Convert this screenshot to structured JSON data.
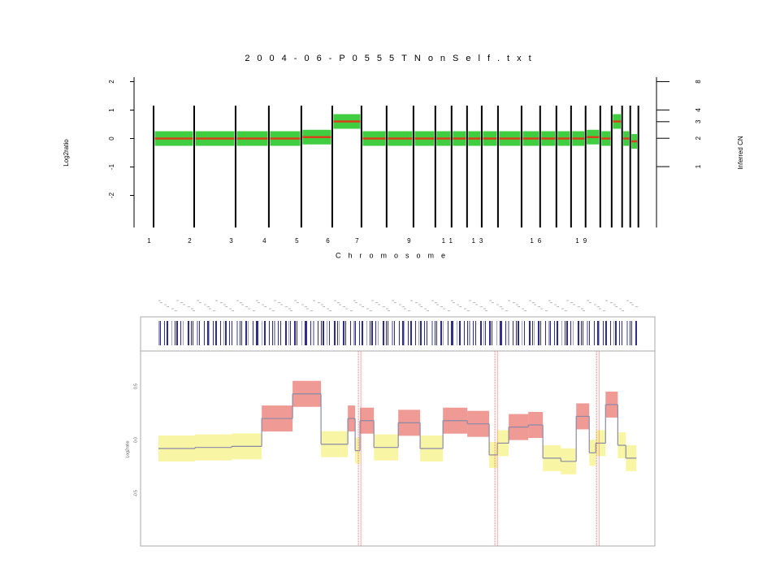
{
  "chart_data": [
    {
      "type": "segment",
      "title": "2004-06-P0555TNonSelf.txt",
      "xlabel": "Chromosome",
      "ylabel": "Log2ratio",
      "y2label": "Inferred CN",
      "xlim": [
        -125,
        3220
      ],
      "ylim": [
        -3.1,
        2.1
      ],
      "yticks": [
        2,
        1,
        0,
        -1,
        -2
      ],
      "y2lim": [
        0.23,
        8.57
      ],
      "y2log": 2,
      "y2ticks": [
        8,
        4,
        3,
        2,
        1
      ],
      "xticks": [
        {
          "value": 0,
          "label": "1"
        },
        {
          "value": 260,
          "label": "2"
        },
        {
          "value": 525,
          "label": "3"
        },
        {
          "value": 738,
          "label": "4"
        },
        {
          "value": 946,
          "label": "5"
        },
        {
          "value": 1144,
          "label": "6"
        },
        {
          "value": 1331,
          "label": "7"
        },
        {
          "value": 1664,
          "label": "9"
        },
        {
          "value": 1908,
          "label": "11"
        },
        {
          "value": 2101,
          "label": "13"
        },
        {
          "value": 2475,
          "label": "16"
        },
        {
          "value": 2766,
          "label": "19"
        }
      ],
      "boundaries": [
        0,
        260,
        525,
        738,
        946,
        1144,
        1331,
        1492,
        1664,
        1804,
        1908,
        2007,
        2101,
        2205,
        2356,
        2475,
        2579,
        2673,
        2766,
        2860,
        2933,
        3000,
        3052,
        3104
      ],
      "values": [
        0,
        0,
        0,
        0,
        0.05,
        0.6,
        0,
        0,
        0,
        0,
        0,
        0,
        0,
        0,
        0,
        0,
        0,
        0,
        0.05,
        0,
        0.6,
        0,
        -0.1
      ],
      "point_color": "#1fc41f",
      "segment_color": "#d8401c"
    },
    {
      "type": "step",
      "ylabel": "Log2ratio",
      "xlim": [
        -115,
        3200
      ],
      "ylim": [
        -0.99,
        0.83
      ],
      "yticks": [
        {
          "value": 0.5,
          "label": "0.5"
        },
        {
          "value": 0,
          "label": "0.0"
        },
        {
          "value": -0.5,
          "label": "-0.5"
        }
      ],
      "breaks": [
        0,
        236,
        472,
        666,
        865,
        1048,
        1221,
        1268,
        1299,
        1389,
        1546,
        1687,
        1834,
        1991,
        2132,
        2185,
        2258,
        2384,
        2478,
        2594,
        2693,
        2777,
        2819,
        2882,
        2961,
        3013,
        3081
      ],
      "values": [
        -0.08,
        -0.07,
        -0.06,
        0.2,
        0.43,
        -0.04,
        0.2,
        -0.1,
        0.18,
        -0.07,
        0.16,
        -0.08,
        0.18,
        0.15,
        -0.14,
        -0.03,
        0.12,
        0.14,
        -0.17,
        -0.2,
        0.22,
        -0.12,
        -0.03,
        0.33,
        -0.05,
        -0.17
      ],
      "point_colors": [
        "#f2ee5a",
        "#f2ee5a",
        "#f2ee5a",
        "#e2473d",
        "#e2473d",
        "#f2ee5a",
        "#e2473d",
        "#f2ee5a",
        "#e2473d",
        "#f2ee5a",
        "#e2473d",
        "#f2ee5a",
        "#e2473d",
        "#e2473d",
        "#f2ee5a",
        "#f2ee5a",
        "#e2473d",
        "#e2473d",
        "#f2ee5a",
        "#f2ee5a",
        "#e2473d",
        "#f2ee5a",
        "#f2ee5a",
        "#e2473d",
        "#f2ee5a",
        "#f2ee5a"
      ],
      "line_color": "#8a8aa8",
      "marker_lines": [
        1289,
        2169,
        2824
      ],
      "marker_color": "#f07070"
    }
  ]
}
